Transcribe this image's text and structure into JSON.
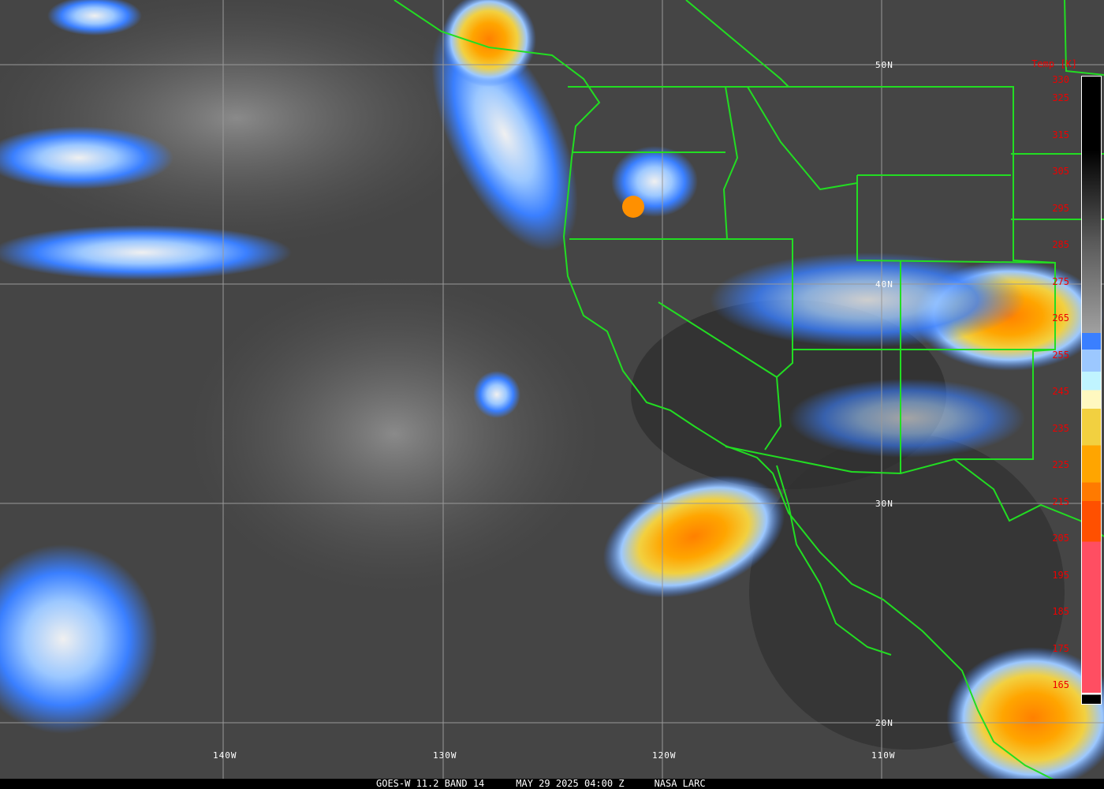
{
  "title_bar": {
    "satellite": "GOES-W 11.2 BAND 14",
    "datetime": "MAY 29 2025 04:00 Z",
    "source": "NASA LARC"
  },
  "legend": {
    "title": "Temp [K]",
    "ticks": [
      "330",
      "325",
      "315",
      "305",
      "295",
      "285",
      "275",
      "265",
      "255",
      "245",
      "235",
      "225",
      "215",
      "205",
      "195",
      "185",
      "175",
      "165"
    ]
  },
  "grid": {
    "latitudes": [
      "50N",
      "40N",
      "30N",
      "20N"
    ],
    "longitudes": [
      "140W",
      "130W",
      "120W",
      "110W"
    ]
  },
  "colors": {
    "border": "#22dd22",
    "grid": "#999999",
    "tick_text": "#ee0000",
    "cold_blue": "#3a7fff",
    "light_blue": "#9cc8ff",
    "cyan": "#c0f4ff",
    "pale_yellow": "#fff8c0",
    "yellow": "#f2d040",
    "orange": "#ffa500",
    "dark_orange": "#ff7a00",
    "red_orange": "#ff5000",
    "pink": "#ff4e62"
  }
}
